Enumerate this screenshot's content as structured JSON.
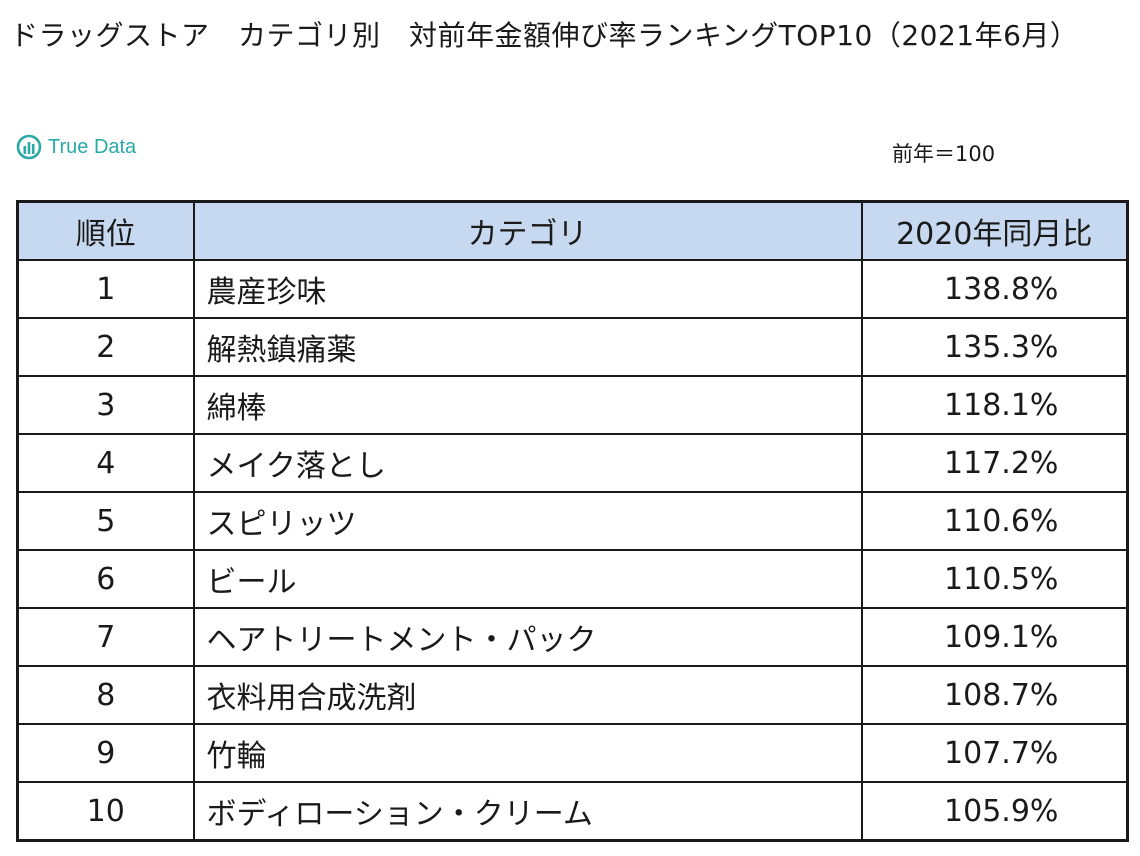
{
  "title": "ドラッグストア　カテゴリ別　対前年金額伸び率ランキングTOP10（2021年6月）",
  "logo": {
    "text": "True Data",
    "color": "#2aa9a5"
  },
  "base_note": "前年＝100",
  "table": {
    "headers": [
      "順位",
      "カテゴリ",
      "2020年同月比"
    ],
    "header_bg": "#c6d9f0",
    "rows": [
      {
        "rank": "1",
        "category": "農産珍味",
        "ratio": "138.8%"
      },
      {
        "rank": "2",
        "category": "解熱鎮痛薬",
        "ratio": "135.3%"
      },
      {
        "rank": "3",
        "category": "綿棒",
        "ratio": "118.1%"
      },
      {
        "rank": "4",
        "category": "メイク落とし",
        "ratio": "117.2%"
      },
      {
        "rank": "5",
        "category": "スピリッツ",
        "ratio": "110.6%"
      },
      {
        "rank": "6",
        "category": "ビール",
        "ratio": "110.5%"
      },
      {
        "rank": "7",
        "category": "ヘアトリートメント・パック",
        "ratio": "109.1%"
      },
      {
        "rank": "8",
        "category": "衣料用合成洗剤",
        "ratio": "108.7%"
      },
      {
        "rank": "9",
        "category": "竹輪",
        "ratio": "107.7%"
      },
      {
        "rank": "10",
        "category": "ボディローション・クリーム",
        "ratio": "105.9%"
      }
    ]
  }
}
